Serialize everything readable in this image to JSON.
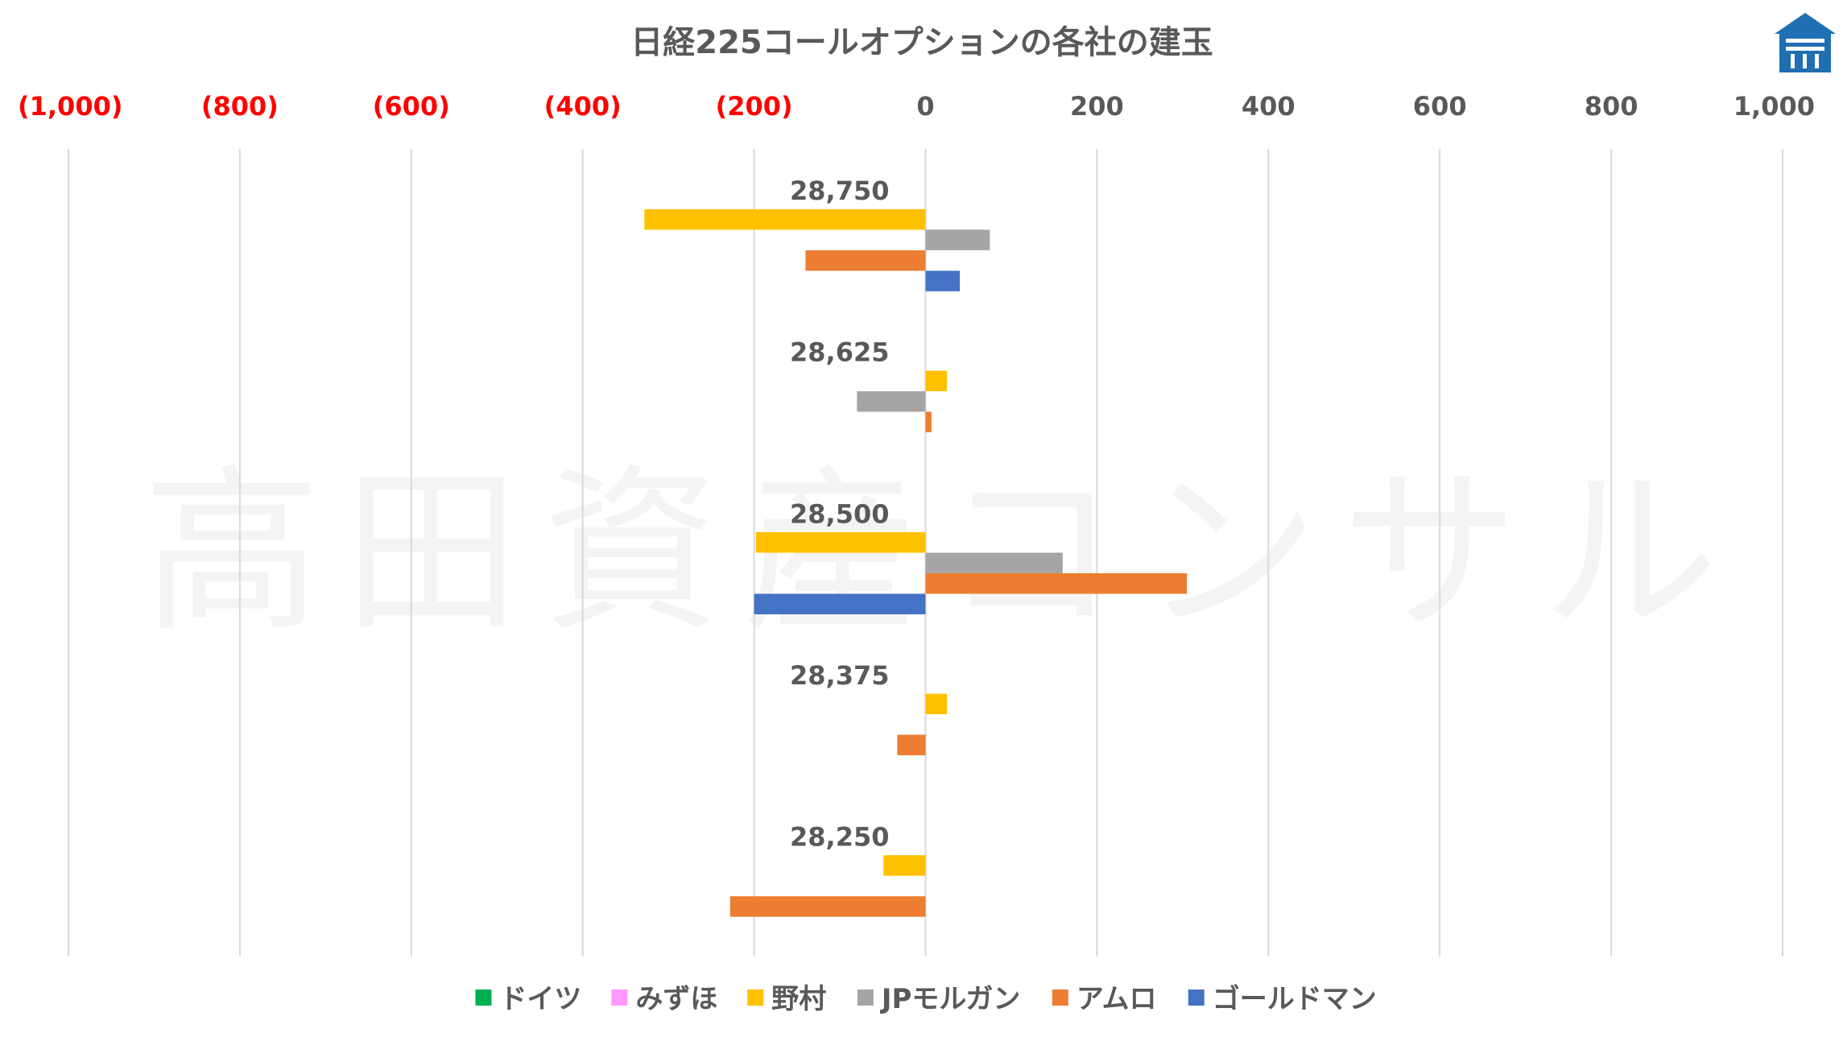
{
  "chart_data": {
    "type": "bar",
    "orientation": "horizontal",
    "title": "日経225コールオプションの各社の建玉",
    "categories": [
      "28,750",
      "28,625",
      "28,500",
      "28,375",
      "28,250"
    ],
    "series": [
      {
        "name": "ドイツ",
        "color": "#00B050",
        "values": [
          0,
          0,
          0,
          0,
          0
        ]
      },
      {
        "name": "みずほ",
        "color": "#FF99FF",
        "values": [
          0,
          0,
          0,
          0,
          0
        ]
      },
      {
        "name": "野村",
        "color": "#FFC000",
        "values": [
          -328,
          25,
          -198,
          25,
          -49
        ]
      },
      {
        "name": "JPモルガン",
        "color": "#A5A5A5",
        "values": [
          75,
          -80,
          160,
          0,
          0
        ]
      },
      {
        "name": "アムロ",
        "color": "#ED7D31",
        "values": [
          -140,
          7,
          305,
          -33,
          -228
        ]
      },
      {
        "name": "ゴールドマン",
        "color": "#4472C4",
        "values": [
          40,
          0,
          -200,
          0,
          0
        ]
      }
    ],
    "xlim": [
      -1000,
      1000
    ],
    "x_ticks": [
      {
        "value": -1000,
        "label": "(1,000)"
      },
      {
        "value": -800,
        "label": "(800)"
      },
      {
        "value": -600,
        "label": "(600)"
      },
      {
        "value": -400,
        "label": "(400)"
      },
      {
        "value": -200,
        "label": "(200)"
      },
      {
        "value": 0,
        "label": "0"
      },
      {
        "value": 200,
        "label": "200"
      },
      {
        "value": 400,
        "label": "400"
      },
      {
        "value": 600,
        "label": "600"
      },
      {
        "value": 800,
        "label": "800"
      },
      {
        "value": 1000,
        "label": "1,000"
      }
    ],
    "negative_tick_color": "#FF0000",
    "positive_tick_color": "#595959",
    "grid": true,
    "legend_position": "bottom",
    "watermark": "高田資産コンサル",
    "logo": "building-logo"
  }
}
